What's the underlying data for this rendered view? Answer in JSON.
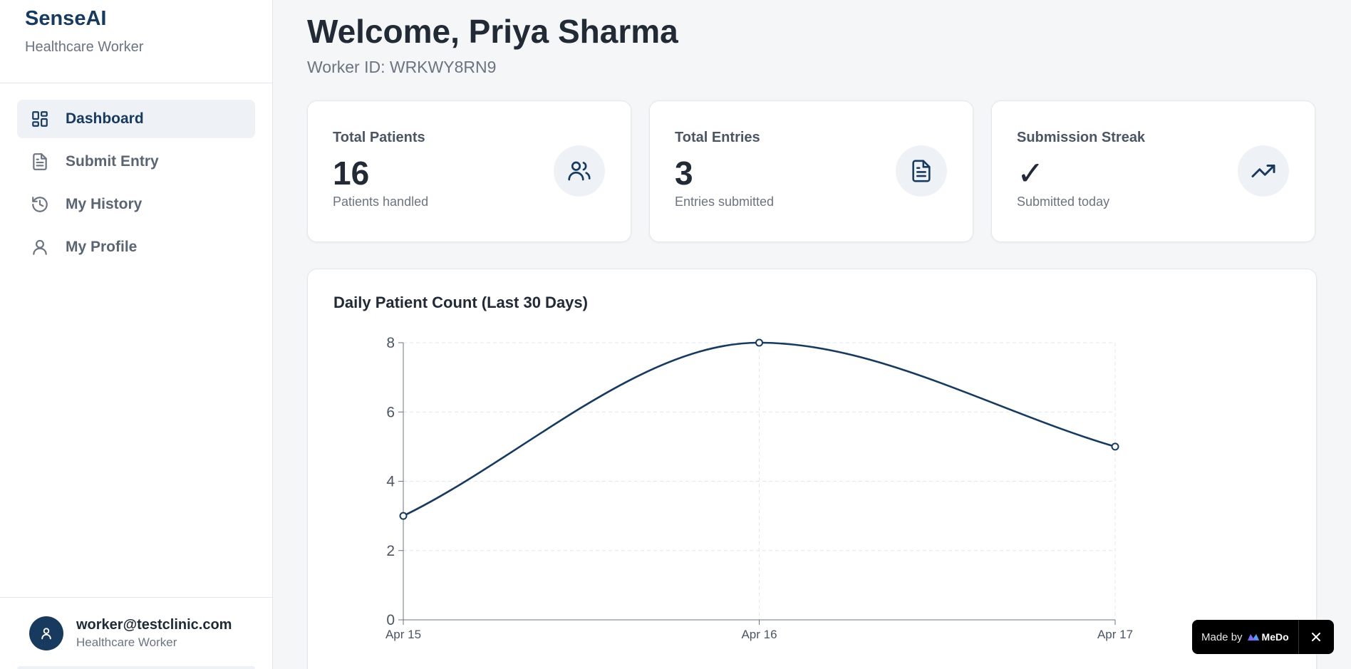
{
  "app": {
    "name": "SenseAI",
    "role": "Healthcare Worker"
  },
  "sidebar": {
    "items": [
      {
        "label": "Dashboard",
        "icon": "dashboard-icon",
        "active": true
      },
      {
        "label": "Submit Entry",
        "icon": "document-icon",
        "active": false
      },
      {
        "label": "My History",
        "icon": "history-icon",
        "active": false
      },
      {
        "label": "My Profile",
        "icon": "user-icon",
        "active": false
      }
    ]
  },
  "user": {
    "email": "worker@testclinic.com",
    "role": "Healthcare Worker",
    "icon": "user-icon"
  },
  "header": {
    "title": "Welcome, Priya Sharma",
    "worker_id": "Worker ID: WRKWY8RN9"
  },
  "stats": [
    {
      "title": "Total Patients",
      "value": "16",
      "sub": "Patients handled",
      "icon": "users-icon"
    },
    {
      "title": "Total Entries",
      "value": "3",
      "sub": "Entries submitted",
      "icon": "document-icon"
    },
    {
      "title": "Submission Streak",
      "value": "✓",
      "sub": "Submitted today",
      "icon": "trending-up-icon"
    }
  ],
  "chart_data": {
    "type": "line",
    "title": "Daily Patient Count (Last 30 Days)",
    "x": [
      "Apr 15",
      "Apr 16",
      "Apr 17"
    ],
    "series": [
      {
        "values": [
          3,
          8,
          5
        ]
      }
    ],
    "ylim": [
      0,
      8
    ],
    "yticks": [
      0,
      2,
      4,
      6,
      8
    ],
    "xlabel": "",
    "ylabel": "",
    "grid": true,
    "line_color": "#173a5e"
  },
  "badge": {
    "text": "Made by",
    "brand": "MeDo"
  },
  "colors": {
    "accent": "#173a5e",
    "background": "#f4f6f8"
  }
}
